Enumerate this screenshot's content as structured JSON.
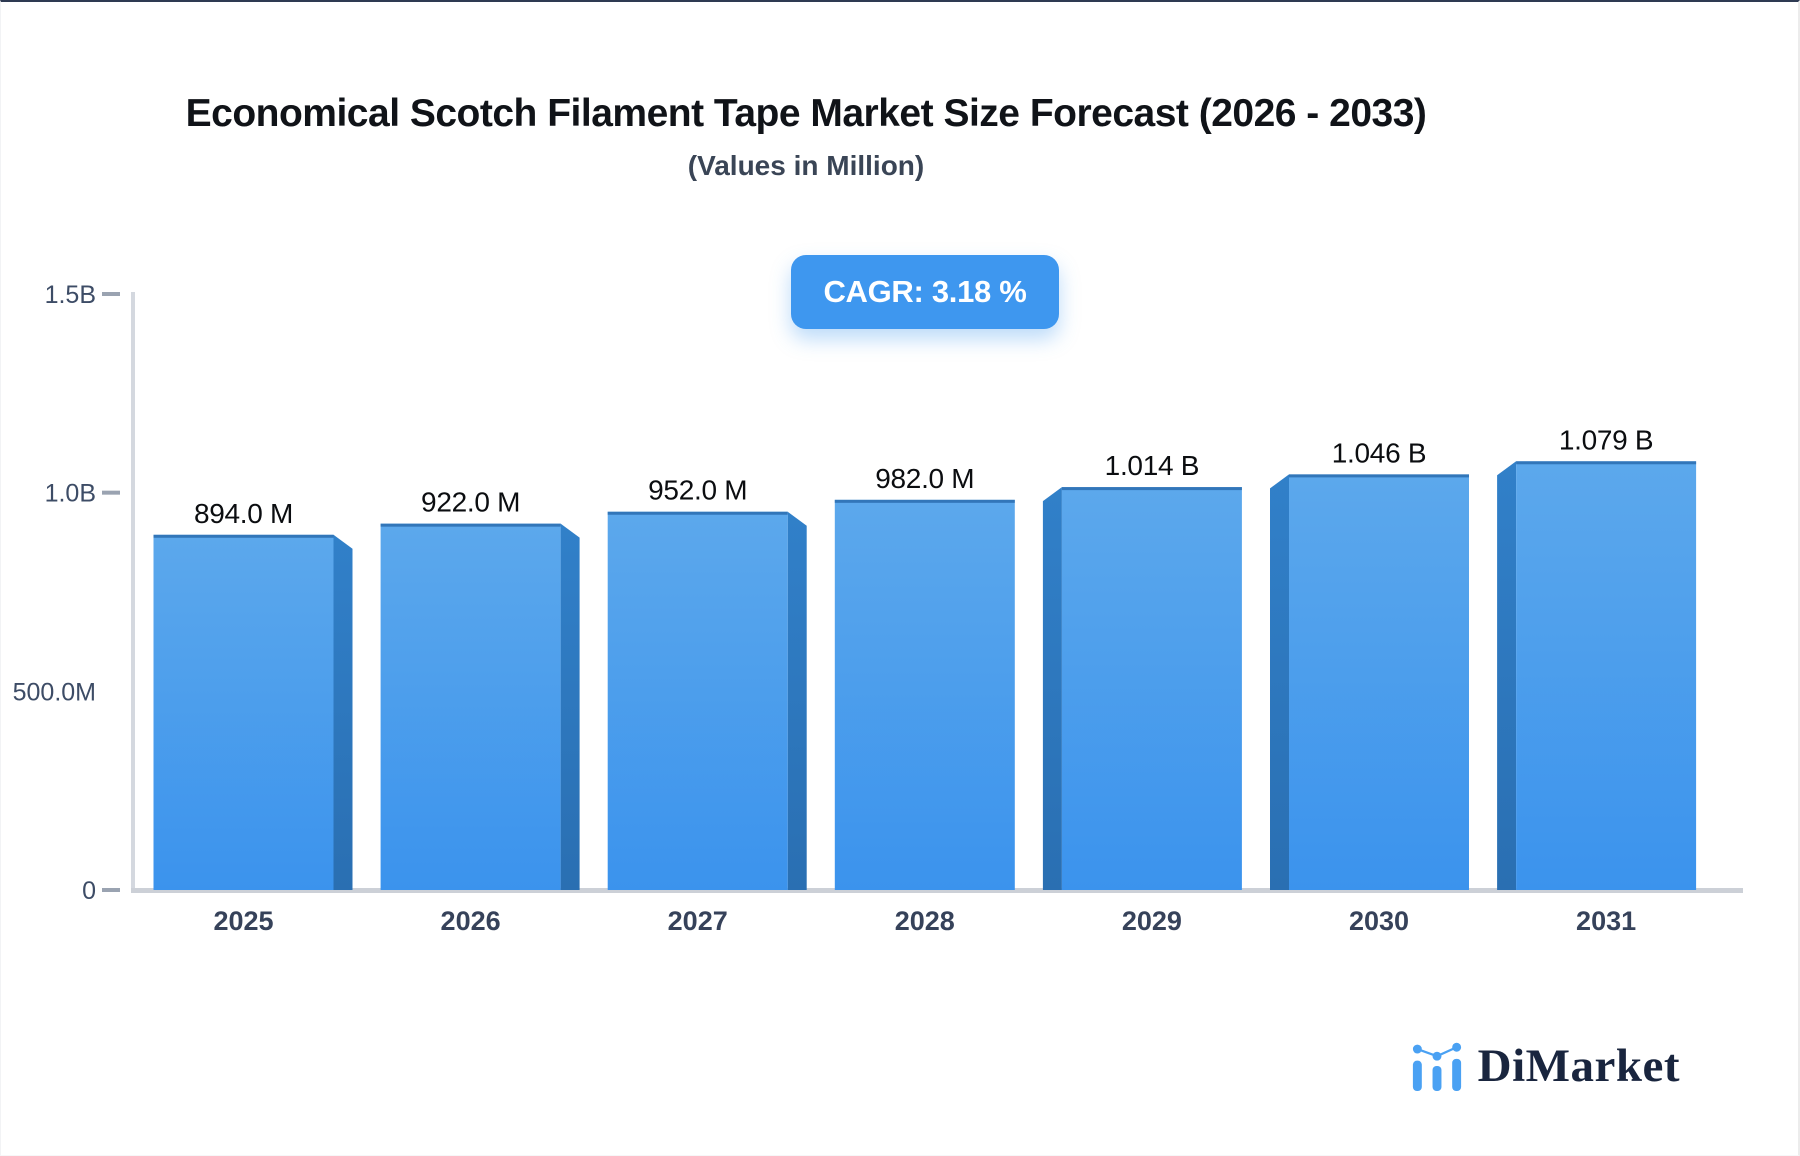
{
  "page": {
    "title": "Economical Scotch Filament Tape Market Size Forecast (2026 - 2033)",
    "subtitle": "(Values in Million)",
    "cagr_label": "CAGR: 3.18 %",
    "brand_name": "DiMarket",
    "accent_color": "#3e97ef"
  },
  "chart_data": {
    "type": "bar",
    "title": "Economical Scotch Filament Tape Market Size Forecast (2026 - 2033)",
    "subtitle": "(Values in Million)",
    "cagr_percent": 3.18,
    "categories": [
      "2025",
      "2026",
      "2027",
      "2028",
      "2029",
      "2030",
      "2031"
    ],
    "values_millions": [
      894,
      922,
      952,
      982,
      1014,
      1046,
      1079
    ],
    "value_labels": [
      "894.0 M",
      "922.0 M",
      "952.0 M",
      "982.0 M",
      "1.014 B",
      "1.046 B",
      "1.079 B"
    ],
    "y_axis": {
      "min": 0,
      "max": 1500,
      "ticks": [
        {
          "label": "1.5B",
          "value": 1500,
          "dash": true
        },
        {
          "label": "1.0B",
          "value": 1000,
          "dash": true
        },
        {
          "label": "500.0M",
          "value": 500,
          "dash": false
        },
        {
          "label": "0",
          "value": 0,
          "dash": true
        }
      ]
    },
    "bar_style": {
      "front_top_color": "#5CA8EC",
      "front_bottom_color": "#3B93ED",
      "side_top_color": "#3180C9",
      "side_bottom_color": "#2A6FB2",
      "top_edge_color": "#2A6DB0",
      "depth_side": [
        "right",
        "right",
        "right",
        "none",
        "left",
        "left",
        "left"
      ]
    },
    "grid": false,
    "legend": false
  }
}
